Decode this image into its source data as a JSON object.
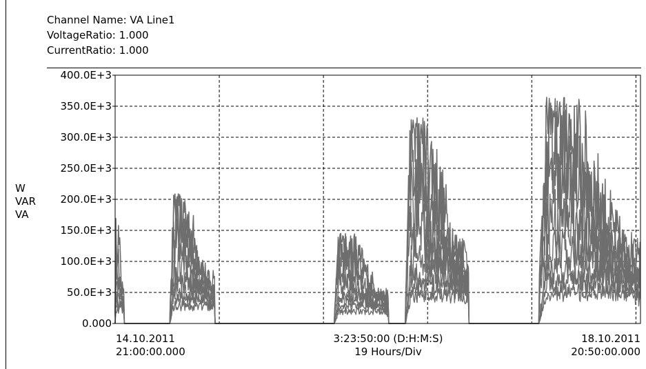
{
  "header": {
    "channel_name": "Channel Name: VA Line1",
    "voltage_ratio": "VoltageRatio: 1.000",
    "current_ratio": "CurrentRatio: 1.000"
  },
  "y_axis_label_lines": [
    "W",
    "VAR",
    "VA"
  ],
  "x_footer": {
    "left_date": "14.10.2011",
    "left_time": "21:00:00.000",
    "center_span": "3:23:50:00 (D:H:M:S)",
    "center_div": "19 Hours/Div",
    "right_date": "18.10.2011",
    "right_time": "20:50:00.000"
  },
  "colors": {
    "series": "#6e6e6e",
    "grid": "#000000",
    "background": "#ffffff"
  },
  "chart_data": {
    "type": "line",
    "title": "",
    "ylabel": "W VAR VA",
    "xlabel": "",
    "ylim": [
      0,
      400000
    ],
    "y_tick_values": [
      0,
      50000,
      100000,
      150000,
      200000,
      250000,
      300000,
      350000,
      400000
    ],
    "y_tick_labels": [
      "0.000",
      "50.0E+3",
      "100.0E+3",
      "150.0E+3",
      "200.0E+3",
      "250.0E+3",
      "300.0E+3",
      "350.0E+3",
      "400.0E+3"
    ],
    "x_range_hours": [
      0,
      95.8333
    ],
    "x_start": "14.10.2011 21:00:00.000",
    "x_end": "18.10.2011 20:50:00.000",
    "x_span": "3:23:50:00 (D:H:M:S)",
    "x_division": "19 Hours/Div",
    "grid": true,
    "legend": "none",
    "active_periods_hours": [
      {
        "start": 0.0,
        "end": 1.6,
        "peak": 170000
      },
      {
        "start": 10.0,
        "end": 18.2,
        "peak": 210000
      },
      {
        "start": 40.0,
        "end": 49.8,
        "peak": 145000
      },
      {
        "start": 53.0,
        "end": 64.5,
        "peak": 335000
      },
      {
        "start": 77.3,
        "end": 95.8,
        "peak": 365000
      }
    ],
    "series_levels_relative": [
      1.0,
      0.82,
      0.64,
      0.5,
      0.38,
      0.28,
      0.22,
      0.16
    ]
  }
}
